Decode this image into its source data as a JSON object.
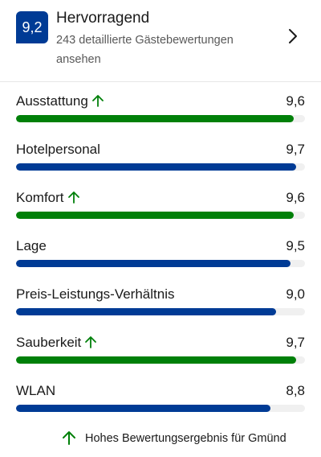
{
  "summary": {
    "score": "9,2",
    "rating_word": "Hervorragend",
    "reviews_link": "243 detaillierte Gästebewertungen ansehen"
  },
  "categories": [
    {
      "label": "Ausstattung",
      "score": "9,6",
      "value": 9.6,
      "high": true
    },
    {
      "label": "Hotelpersonal",
      "score": "9,7",
      "value": 9.7,
      "high": false
    },
    {
      "label": "Komfort",
      "score": "9,6",
      "value": 9.6,
      "high": true
    },
    {
      "label": "Lage",
      "score": "9,5",
      "value": 9.5,
      "high": false
    },
    {
      "label": "Preis-Leistungs-Verhältnis",
      "score": "9,0",
      "value": 9.0,
      "high": false
    },
    {
      "label": "Sauberkeit",
      "score": "9,7",
      "value": 9.7,
      "high": true
    },
    {
      "label": "WLAN",
      "score": "8,8",
      "value": 8.8,
      "high": false
    }
  ],
  "scale_max": 10,
  "legend": {
    "text": "Hohes Bewertungsergebnis für Gmünd",
    "icon": "arrow-up-icon"
  },
  "colors": {
    "brand_blue": "#003b95",
    "high_green": "#008009",
    "track": "#f0f0f0"
  }
}
